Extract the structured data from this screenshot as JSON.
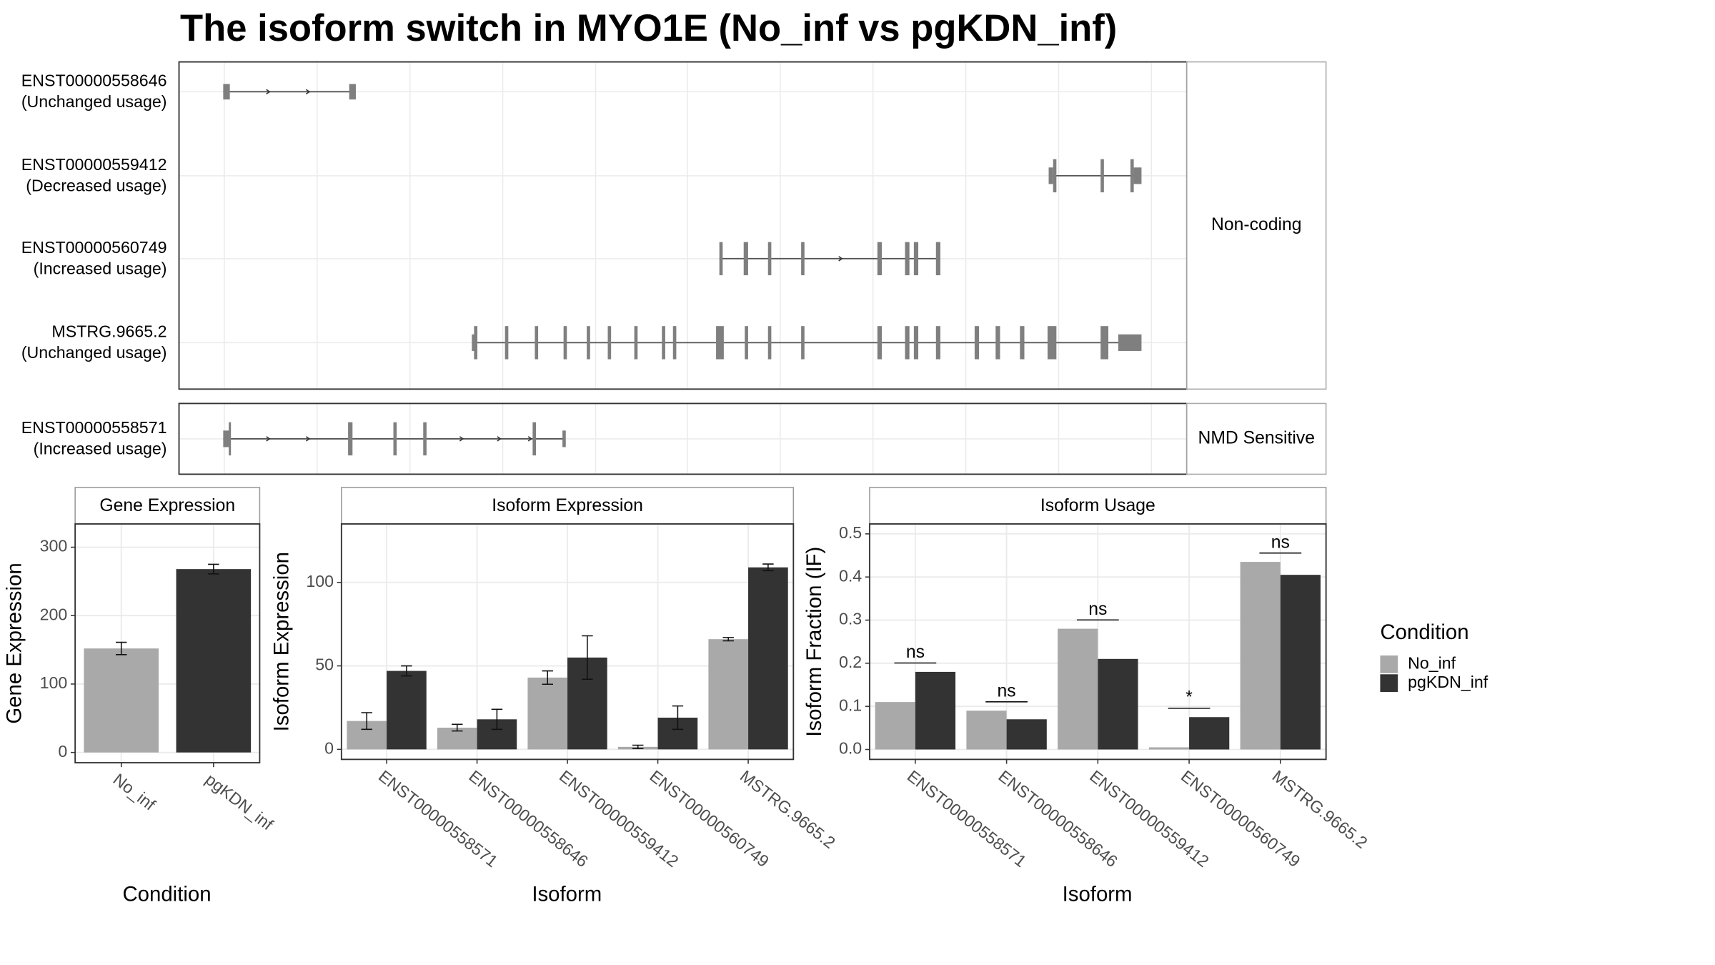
{
  "title": "The isoform switch in MYO1E (No_inf vs pgKDN_inf)",
  "transcripts": [
    {
      "category": "Non-coding",
      "isoforms": [
        {
          "id": "ENST00000558646",
          "usage": "(Unchanged usage)"
        },
        {
          "id": "ENST00000559412",
          "usage": "(Decreased usage)"
        },
        {
          "id": "ENST00000560749",
          "usage": "(Increased usage)"
        },
        {
          "id": "MSTRG.9665.2",
          "usage": "(Unchanged usage)"
        }
      ]
    },
    {
      "category": "NMD Sensitive",
      "isoforms": [
        {
          "id": "ENST00000558571",
          "usage": "(Increased usage)"
        }
      ]
    }
  ],
  "chart_data": [
    {
      "type": "bar",
      "title": "Gene Expression",
      "ylabel": "Gene Expression",
      "xlabel": "Condition",
      "categories": [
        "No_inf",
        "pgKDN_inf"
      ],
      "values": [
        152,
        268
      ],
      "errors": [
        9,
        7
      ],
      "colors": [
        "#a9a9a9",
        "#333333"
      ],
      "ylim": [
        -15,
        334
      ],
      "yticks": [
        0,
        100,
        200,
        300
      ],
      "grid": true
    },
    {
      "type": "grouped_bar",
      "title": "Isoform Expression",
      "ylabel": "Isoform Expression",
      "xlabel": "Isoform",
      "categories": [
        "ENST00000558571",
        "ENST00000558646",
        "ENST00000559412",
        "ENST00000560749",
        "MSTRG.9665.2"
      ],
      "series": [
        {
          "name": "No_inf",
          "color": "#a9a9a9",
          "values": [
            17,
            13,
            43,
            1.5,
            66
          ],
          "errors": [
            5,
            2,
            4,
            1,
            1
          ]
        },
        {
          "name": "pgKDN_inf",
          "color": "#333333",
          "values": [
            47,
            18,
            55,
            19,
            109
          ],
          "errors": [
            3,
            6,
            13,
            7,
            2
          ]
        }
      ],
      "ylim": [
        -6,
        135
      ],
      "yticks": [
        0,
        50,
        100
      ],
      "grid": true
    },
    {
      "type": "grouped_bar",
      "title": "Isoform Usage",
      "ylabel": "Isoform Fraction (IF)",
      "xlabel": "Isoform",
      "categories": [
        "ENST00000558571",
        "ENST00000558646",
        "ENST00000559412",
        "ENST00000560749",
        "MSTRG.9665.2"
      ],
      "series": [
        {
          "name": "No_inf",
          "color": "#a9a9a9",
          "values": [
            0.11,
            0.09,
            0.28,
            0.005,
            0.435
          ]
        },
        {
          "name": "pgKDN_inf",
          "color": "#333333",
          "values": [
            0.18,
            0.07,
            0.21,
            0.075,
            0.405
          ]
        }
      ],
      "annotations": [
        "ns",
        "ns",
        "ns",
        "*",
        "ns"
      ],
      "ylim": [
        -0.023,
        0.523
      ],
      "yticks": [
        {
          "value": 0,
          "label": "0.0"
        },
        0.1,
        0.2,
        0.3,
        0.4,
        0.5
      ],
      "grid": true,
      "legend": {
        "title": "Condition",
        "position": "right"
      }
    }
  ]
}
